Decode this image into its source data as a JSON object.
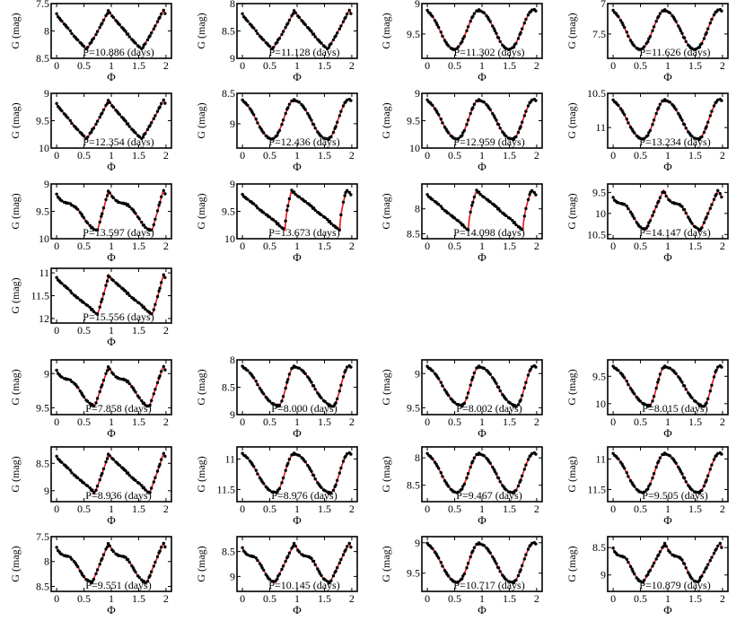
{
  "style": {
    "curve_color": "#e8141c",
    "point_color": "#000000",
    "axis_color": "#000000"
  },
  "chart_data": [
    {
      "type": "scatter",
      "period_label": "P=10.886 (days)",
      "xlabel": "Φ",
      "ylabel": "G (mag)",
      "xlim": [
        -0.1,
        2.1
      ],
      "xticks": [
        "0",
        "0.5",
        "1",
        "1.5",
        "2"
      ],
      "ylim": [
        7.5,
        8.5
      ],
      "yticks": [
        "7.5",
        "8",
        "8.5"
      ],
      "y_inverted": true,
      "shape": "sawtooth",
      "phase_min": 0.55,
      "phase_max": 0.95
    },
    {
      "type": "scatter",
      "period_label": "P=11.128 (days)",
      "xlabel": "Φ",
      "ylabel": "G (mag)",
      "xlim": [
        -0.1,
        2.1
      ],
      "xticks": [
        "0",
        "0.5",
        "1",
        "1.5",
        "2"
      ],
      "ylim": [
        8,
        9
      ],
      "yticks": [
        "8",
        "8.5",
        "9"
      ],
      "y_inverted": true,
      "shape": "sawtooth",
      "phase_min": 0.55,
      "phase_max": 0.95
    },
    {
      "type": "scatter",
      "period_label": "P=11.302 (days)",
      "xlabel": "Φ",
      "ylabel": "G (mag)",
      "xlim": [
        -0.1,
        2.1
      ],
      "xticks": [
        "0",
        "0.5",
        "1",
        "1.5",
        "2"
      ],
      "ylim": [
        9,
        9.9
      ],
      "yticks": [
        "9",
        "9.5"
      ],
      "y_inverted": true,
      "shape": "sine",
      "phase_min": 0.5,
      "phase_max": 0.95
    },
    {
      "type": "scatter",
      "period_label": "P=11.626 (days)",
      "xlabel": "Φ",
      "ylabel": "G (mag)",
      "xlim": [
        -0.1,
        2.1
      ],
      "xticks": [
        "0",
        "0.5",
        "1",
        "1.5",
        "2"
      ],
      "ylim": [
        7,
        7.9
      ],
      "yticks": [
        "7",
        "7.5"
      ],
      "y_inverted": true,
      "shape": "sine",
      "phase_min": 0.5,
      "phase_max": 0.95
    },
    {
      "type": "scatter",
      "period_label": "P=12.354 (days)",
      "xlabel": "Φ",
      "ylabel": "G (mag)",
      "xlim": [
        -0.1,
        2.1
      ],
      "xticks": [
        "0",
        "0.5",
        "1",
        "1.5",
        "2"
      ],
      "ylim": [
        9,
        10
      ],
      "yticks": [
        "9",
        "9.5",
        "10"
      ],
      "y_inverted": true,
      "shape": "sawtooth",
      "phase_min": 0.55,
      "phase_max": 0.95
    },
    {
      "type": "scatter",
      "period_label": "P=12.436 (days)",
      "xlabel": "Φ",
      "ylabel": "G (mag)",
      "xlim": [
        -0.1,
        2.1
      ],
      "xticks": [
        "0",
        "0.5",
        "1",
        "1.5",
        "2"
      ],
      "ylim": [
        8.5,
        9.4
      ],
      "yticks": [
        "8.5",
        "9"
      ],
      "y_inverted": true,
      "shape": "sine",
      "phase_min": 0.55,
      "phase_max": 0.95
    },
    {
      "type": "scatter",
      "period_label": "P=12.959 (days)",
      "xlabel": "Φ",
      "ylabel": "G (mag)",
      "xlim": [
        -0.1,
        2.1
      ],
      "xticks": [
        "0",
        "0.5",
        "1",
        "1.5",
        "2"
      ],
      "ylim": [
        9,
        10
      ],
      "yticks": [
        "9",
        "9.5",
        "10"
      ],
      "y_inverted": true,
      "shape": "sine",
      "phase_min": 0.55,
      "phase_max": 0.95
    },
    {
      "type": "scatter",
      "period_label": "P=13.234 (days)",
      "xlabel": "Φ",
      "ylabel": "G (mag)",
      "xlim": [
        -0.1,
        2.1
      ],
      "xticks": [
        "0",
        "0.5",
        "1",
        "1.5",
        "2"
      ],
      "ylim": [
        10.5,
        11.3
      ],
      "yticks": [
        "10.5",
        "11"
      ],
      "y_inverted": true,
      "shape": "sine",
      "phase_min": 0.55,
      "phase_max": 0.95
    },
    {
      "type": "scatter",
      "period_label": "P=13.597 (days)",
      "xlabel": "Φ",
      "ylabel": "G (mag)",
      "xlim": [
        -0.1,
        2.1
      ],
      "xticks": [
        "0",
        "0.5",
        "1",
        "1.5",
        "2"
      ],
      "ylim": [
        9,
        10
      ],
      "yticks": [
        "9",
        "9.5",
        "10"
      ],
      "y_inverted": true,
      "shape": "bump",
      "phase_min": 0.75,
      "phase_max": 0.95
    },
    {
      "type": "scatter",
      "period_label": "P=13.673 (days)",
      "xlabel": "Φ",
      "ylabel": "G (mag)",
      "xlim": [
        -0.1,
        2.1
      ],
      "xticks": [
        "0",
        "0.5",
        "1",
        "1.5",
        "2"
      ],
      "ylim": [
        9,
        10
      ],
      "yticks": [
        "9",
        "9.5",
        "10"
      ],
      "y_inverted": true,
      "shape": "sharp",
      "phase_min": 0.78,
      "phase_max": 0.9
    },
    {
      "type": "scatter",
      "period_label": "P=14.098 (days)",
      "xlabel": "Φ",
      "ylabel": "G (mag)",
      "xlim": [
        -0.1,
        2.1
      ],
      "xticks": [
        "0",
        "0.5",
        "1",
        "1.5",
        "2"
      ],
      "ylim": [
        7.5,
        8.6
      ],
      "yticks": [
        "8",
        "8.5"
      ],
      "y_inverted": true,
      "shape": "sharp",
      "phase_min": 0.75,
      "phase_max": 0.9
    },
    {
      "type": "scatter",
      "period_label": "P=14.147 (days)",
      "xlabel": "Φ",
      "ylabel": "G (mag)",
      "xlim": [
        -0.1,
        2.1
      ],
      "xticks": [
        "0",
        "0.5",
        "1",
        "1.5",
        "2"
      ],
      "ylim": [
        9.3,
        10.6
      ],
      "yticks": [
        "9.5",
        "10",
        "10.5"
      ],
      "y_inverted": true,
      "shape": "bump",
      "phase_min": 0.6,
      "phase_max": 0.92
    },
    {
      "type": "scatter",
      "period_label": "P=15.556 (days)",
      "xlabel": "Φ",
      "ylabel": "G (mag)",
      "xlim": [
        -0.1,
        2.1
      ],
      "xticks": [
        "0",
        "0.5",
        "1",
        "1.5",
        "2"
      ],
      "ylim": [
        10.9,
        12.1
      ],
      "yticks": [
        "11",
        "11.5",
        "12"
      ],
      "y_inverted": true,
      "shape": "sawtooth",
      "phase_min": 0.75,
      "phase_max": 0.95
    },
    {
      "type": "scatter",
      "period_label": "P=7.858 (days)",
      "xlabel": "Φ",
      "ylabel": "G (mag)",
      "xlim": [
        -0.1,
        2.1
      ],
      "xticks": [
        "0",
        "0.5",
        "1",
        "1.5",
        "2"
      ],
      "ylim": [
        8.8,
        9.6
      ],
      "yticks": [
        "9",
        "9.5"
      ],
      "y_inverted": true,
      "shape": "bump",
      "phase_min": 0.7,
      "phase_max": 0.95
    },
    {
      "type": "scatter",
      "period_label": "P=8.000 (days)",
      "xlabel": "Φ",
      "ylabel": "G (mag)",
      "xlim": [
        -0.1,
        2.1
      ],
      "xticks": [
        "0",
        "0.5",
        "1",
        "1.5",
        "2"
      ],
      "ylim": [
        8,
        9
      ],
      "yticks": [
        "8",
        "8.5",
        "9"
      ],
      "y_inverted": true,
      "shape": "sine",
      "phase_min": 0.65,
      "phase_max": 0.95
    },
    {
      "type": "scatter",
      "period_label": "P=8.002 (days)",
      "xlabel": "Φ",
      "ylabel": "G (mag)",
      "xlim": [
        -0.1,
        2.1
      ],
      "xticks": [
        "0",
        "0.5",
        "1",
        "1.5",
        "2"
      ],
      "ylim": [
        8.8,
        9.6
      ],
      "yticks": [
        "9",
        "9.5"
      ],
      "y_inverted": true,
      "shape": "sine",
      "phase_min": 0.62,
      "phase_max": 0.95
    },
    {
      "type": "scatter",
      "period_label": "P=8.015 (days)",
      "xlabel": "Φ",
      "ylabel": "G (mag)",
      "xlim": [
        -0.1,
        2.1
      ],
      "xticks": [
        "0",
        "0.5",
        "1",
        "1.5",
        "2"
      ],
      "ylim": [
        9.2,
        10.2
      ],
      "yticks": [
        "9.5",
        "10"
      ],
      "y_inverted": true,
      "shape": "sine",
      "phase_min": 0.65,
      "phase_max": 0.95
    },
    {
      "type": "scatter",
      "period_label": "P=8.936 (days)",
      "xlabel": "Φ",
      "ylabel": "G (mag)",
      "xlim": [
        -0.1,
        2.1
      ],
      "xticks": [
        "0",
        "0.5",
        "1",
        "1.5",
        "2"
      ],
      "ylim": [
        8.2,
        9.2
      ],
      "yticks": [
        "8.5",
        "9"
      ],
      "y_inverted": true,
      "shape": "sawtooth",
      "phase_min": 0.7,
      "phase_max": 0.95
    },
    {
      "type": "scatter",
      "period_label": "P=8.976 (days)",
      "xlabel": "Φ",
      "ylabel": "G (mag)",
      "xlim": [
        -0.1,
        2.1
      ],
      "xticks": [
        "0",
        "0.5",
        "1",
        "1.5",
        "2"
      ],
      "ylim": [
        10.8,
        11.7
      ],
      "yticks": [
        "11",
        "11.5"
      ],
      "y_inverted": true,
      "shape": "sine",
      "phase_min": 0.6,
      "phase_max": 0.95
    },
    {
      "type": "scatter",
      "period_label": "P=9.467 (days)",
      "xlabel": "Φ",
      "ylabel": "G (mag)",
      "xlim": [
        -0.1,
        2.1
      ],
      "xticks": [
        "0",
        "0.5",
        "1",
        "1.5",
        "2"
      ],
      "ylim": [
        7.8,
        8.8
      ],
      "yticks": [
        "8",
        "8.5"
      ],
      "y_inverted": true,
      "shape": "sine",
      "phase_min": 0.55,
      "phase_max": 0.95
    },
    {
      "type": "scatter",
      "period_label": "P=9.505 (days)",
      "xlabel": "Φ",
      "ylabel": "G (mag)",
      "xlim": [
        -0.1,
        2.1
      ],
      "xticks": [
        "0",
        "0.5",
        "1",
        "1.5",
        "2"
      ],
      "ylim": [
        10.8,
        11.7
      ],
      "yticks": [
        "11",
        "11.5"
      ],
      "y_inverted": true,
      "shape": "sine",
      "phase_min": 0.55,
      "phase_max": 0.95
    },
    {
      "type": "scatter",
      "period_label": "P=9.551 (days)",
      "xlabel": "Φ",
      "ylabel": "G (mag)",
      "xlim": [
        -0.1,
        2.1
      ],
      "xticks": [
        "0",
        "0.5",
        "1",
        "1.5",
        "2"
      ],
      "ylim": [
        7.5,
        8.6
      ],
      "yticks": [
        "7.5",
        "8",
        "8.5"
      ],
      "y_inverted": true,
      "shape": "bump",
      "phase_min": 0.65,
      "phase_max": 0.95
    },
    {
      "type": "scatter",
      "period_label": "P=10.145 (days)",
      "xlabel": "Φ",
      "ylabel": "G (mag)",
      "xlim": [
        -0.1,
        2.1
      ],
      "xticks": [
        "0",
        "0.5",
        "1",
        "1.5",
        "2"
      ],
      "ylim": [
        8.2,
        9.3
      ],
      "yticks": [
        "8.5",
        "9"
      ],
      "y_inverted": true,
      "shape": "bump",
      "phase_min": 0.6,
      "phase_max": 0.95
    },
    {
      "type": "scatter",
      "period_label": "P=10.717 (days)",
      "xlabel": "Φ",
      "ylabel": "G (mag)",
      "xlim": [
        -0.1,
        2.1
      ],
      "xticks": [
        "0",
        "0.5",
        "1",
        "1.5",
        "2"
      ],
      "ylim": [
        8.9,
        9.8
      ],
      "yticks": [
        "9",
        "9.5"
      ],
      "y_inverted": true,
      "shape": "sine",
      "phase_min": 0.55,
      "phase_max": 0.95
    },
    {
      "type": "scatter",
      "period_label": "P=10.879 (days)",
      "xlabel": "Φ",
      "ylabel": "G (mag)",
      "xlim": [
        -0.1,
        2.1
      ],
      "xticks": [
        "0",
        "0.5",
        "1",
        "1.5",
        "2"
      ],
      "ylim": [
        8.3,
        9.3
      ],
      "yticks": [
        "8.5",
        "9"
      ],
      "y_inverted": true,
      "shape": "bump",
      "phase_min": 0.55,
      "phase_max": 0.95
    }
  ]
}
